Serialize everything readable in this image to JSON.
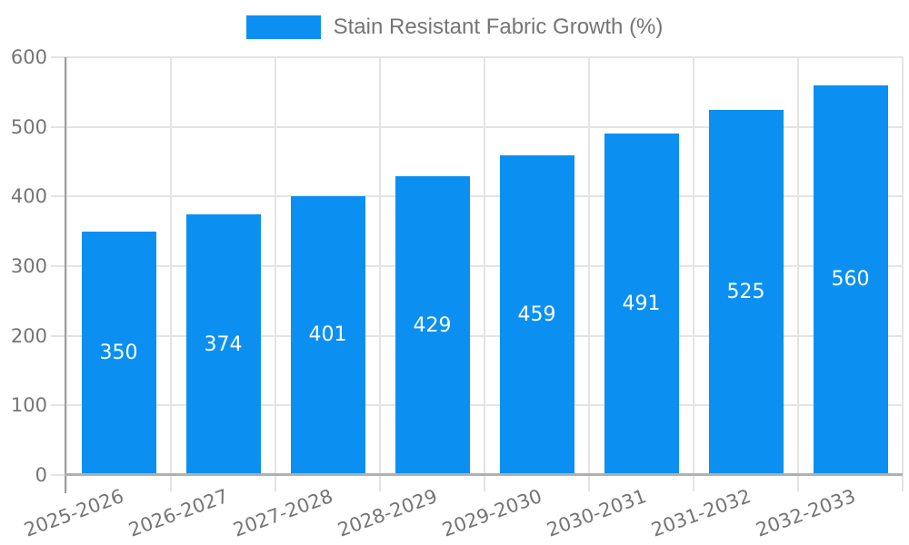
{
  "chart_data": {
    "type": "bar",
    "title": "Stain Resistant Fabric Growth (%)",
    "legend_entries": [
      "Stain Resistant Fabric Growth (%)"
    ],
    "legend_position": "top-center",
    "categories": [
      "2025-2026",
      "2026-2027",
      "2027-2028",
      "2028-2029",
      "2029-2030",
      "2030-2031",
      "2031-2032",
      "2032-2033"
    ],
    "values": [
      350,
      374,
      401,
      429,
      459,
      491,
      525,
      560
    ],
    "xlabel": "",
    "ylabel": "",
    "ylim": [
      0,
      600
    ],
    "yticks": [
      0,
      100,
      200,
      300,
      400,
      500,
      600
    ],
    "grid": true,
    "x_label_rotation_deg": -20,
    "bar_color": "#0b90f1",
    "value_label_color": "#ffffff",
    "axis_text_color": "#757575",
    "show_value_labels": true
  }
}
